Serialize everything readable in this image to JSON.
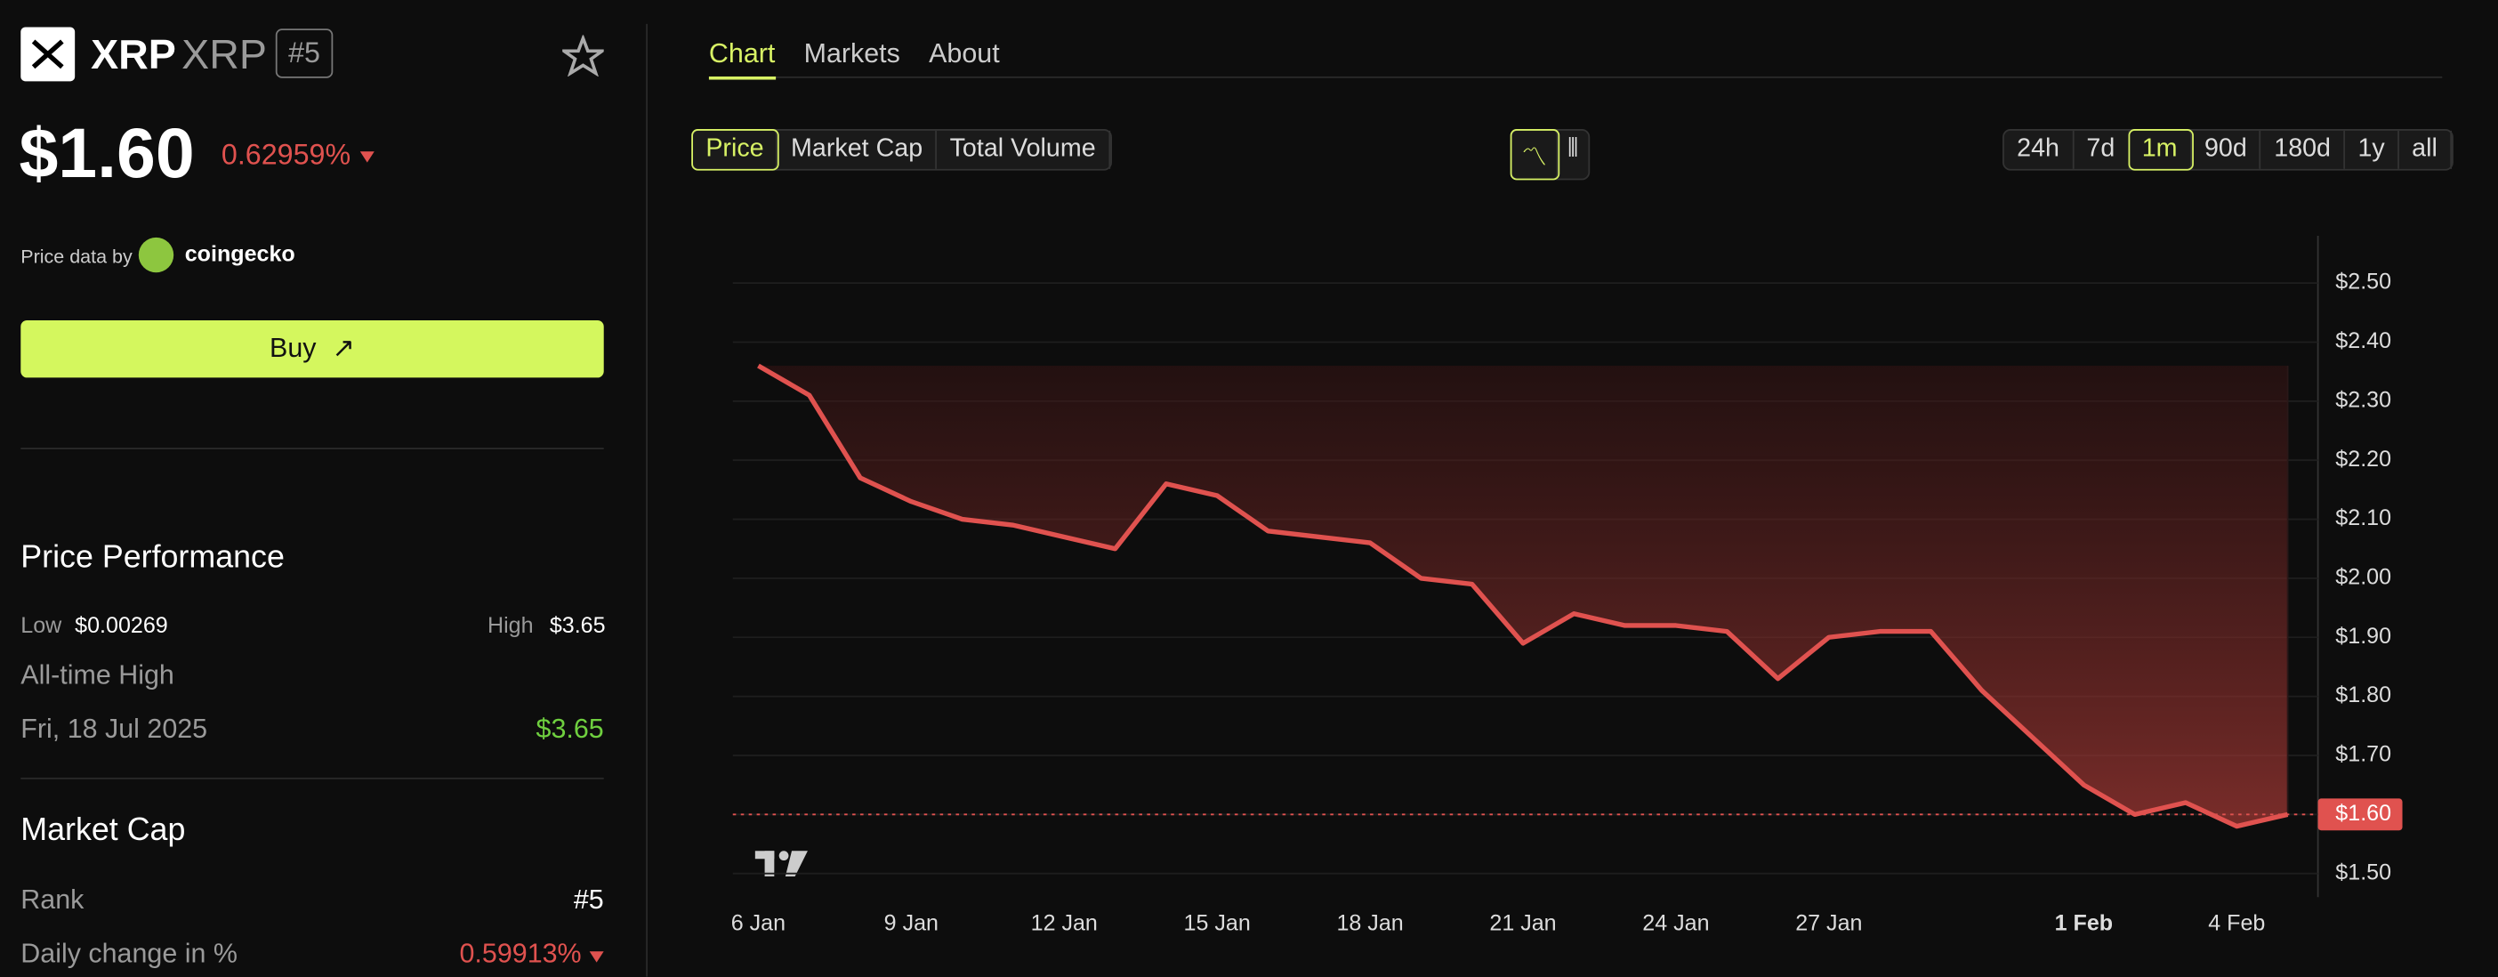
{
  "header": {
    "symbol": "XRP",
    "name": "XRP",
    "rank": "#5"
  },
  "price": {
    "current": "$1.60",
    "change": "0.62959%"
  },
  "source": {
    "label": "Price data by",
    "provider": "coingecko"
  },
  "buy": "Buy",
  "performance": {
    "title": "Price Performance",
    "low_label": "Low",
    "low": "$0.00269",
    "high_label": "High",
    "high": "$3.65",
    "ath_label": "All-time High",
    "ath_date": "Fri, 18 Jul 2025",
    "ath_value": "$3.65"
  },
  "market_cap": {
    "title": "Market Cap",
    "rank_label": "Rank",
    "rank": "#5",
    "daily_label": "Daily change in %",
    "daily": "0.59913%"
  },
  "tabs": [
    "Chart",
    "Markets",
    "About"
  ],
  "metrics": [
    "Price",
    "Market Cap",
    "Total Volume"
  ],
  "ranges": [
    "24h",
    "7d",
    "1m",
    "90d",
    "180d",
    "1y",
    "all"
  ],
  "chart_data": {
    "type": "line",
    "color": "#e0524f",
    "categories": [
      "6 Jan",
      null,
      null,
      "9 Jan",
      null,
      null,
      "12 Jan",
      null,
      null,
      "15 Jan",
      null,
      null,
      "18 Jan",
      null,
      null,
      "21 Jan",
      null,
      null,
      "24 Jan",
      null,
      null,
      "27 Jan",
      null,
      null,
      null,
      null,
      "1 Feb",
      null,
      null,
      "4 Feb",
      null
    ],
    "values": [
      2.36,
      2.31,
      2.17,
      2.13,
      2.1,
      2.09,
      2.07,
      2.05,
      2.16,
      2.14,
      2.08,
      2.07,
      2.06,
      2.0,
      1.99,
      1.89,
      1.94,
      1.92,
      1.92,
      1.91,
      1.83,
      1.9,
      1.91,
      1.91,
      1.81,
      1.73,
      1.65,
      1.6,
      1.62,
      1.58,
      1.6
    ],
    "ylim": [
      1.46,
      2.58
    ],
    "yticks": [
      {
        "value": 1.5,
        "label": "$1.50"
      },
      {
        "value": 1.6,
        "label": "$1.60"
      },
      {
        "value": 1.7,
        "label": "$1.70"
      },
      {
        "value": 1.8,
        "label": "$1.80"
      },
      {
        "value": 1.9,
        "label": "$1.90"
      },
      {
        "value": 2.0,
        "label": "$2.00"
      },
      {
        "value": 2.1,
        "label": "$2.10"
      },
      {
        "value": 2.2,
        "label": "$2.20"
      },
      {
        "value": 2.3,
        "label": "$2.30"
      },
      {
        "value": 2.4,
        "label": "$2.40"
      },
      {
        "value": 2.5,
        "label": "$2.50"
      }
    ],
    "current_price": {
      "value": 1.6,
      "label": "$1.60"
    },
    "grid": true
  }
}
